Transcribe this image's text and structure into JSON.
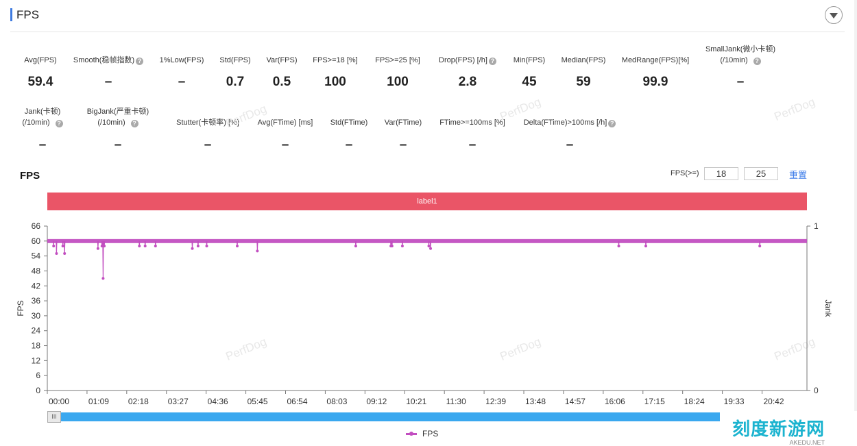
{
  "section": {
    "title": "FPS"
  },
  "stats_row1": [
    {
      "label": "Avg(FPS)",
      "value": "59.4",
      "help": false
    },
    {
      "label": "Smooth(稳帧指数)",
      "value": "–",
      "help": true
    },
    {
      "label": "1%Low(FPS)",
      "value": "–",
      "help": false
    },
    {
      "label": "Std(FPS)",
      "value": "0.7",
      "help": false
    },
    {
      "label": "Var(FPS)",
      "value": "0.5",
      "help": false
    },
    {
      "label": "FPS>=18 [%]",
      "value": "100",
      "help": false
    },
    {
      "label": "FPS>=25 [%]",
      "value": "100",
      "help": false
    },
    {
      "label": "Drop(FPS) [/h]",
      "value": "2.8",
      "help": true
    },
    {
      "label": "Min(FPS)",
      "value": "45",
      "help": false
    },
    {
      "label": "Median(FPS)",
      "value": "59",
      "help": false
    },
    {
      "label": "MedRange(FPS)[%]",
      "value": "99.9",
      "help": false
    },
    {
      "label": "SmallJank(微小卡顿)",
      "label2": "(/10min)",
      "value": "–",
      "help": true
    }
  ],
  "stats_row2": [
    {
      "label": "Jank(卡顿)",
      "label2": "(/10min)",
      "value": "–",
      "help": true
    },
    {
      "label": "BigJank(严重卡顿)",
      "label2": "(/10min)",
      "value": "–",
      "help": true
    },
    {
      "label": "Stutter(卡顿率) [%]",
      "value": "–",
      "help": false
    },
    {
      "label": "Avg(FTime) [ms]",
      "value": "–",
      "help": false
    },
    {
      "label": "Std(FTime)",
      "value": "–",
      "help": false
    },
    {
      "label": "Var(FTime)",
      "value": "–",
      "help": false
    },
    {
      "label": "FTime>=100ms [%]",
      "value": "–",
      "help": false
    },
    {
      "label": "Delta(FTime)>100ms [/h]",
      "value": "–",
      "help": true
    }
  ],
  "help_glyph": "?",
  "controls": {
    "fps_label": "FPS(>=)",
    "threshold_1": "18",
    "threshold_2": "25",
    "reset": "重置"
  },
  "watermark": "PerfDog",
  "scroll_handle_glyph": "III",
  "logo": {
    "cn": "刻度新游网",
    "en": "AKEDU.NET"
  },
  "chart_data": {
    "type": "line",
    "title": "FPS",
    "label_band": "label1",
    "ylabel": "FPS",
    "y2label": "Jank",
    "ylim": [
      0,
      66
    ],
    "yticks": [
      0,
      6,
      12,
      18,
      24,
      30,
      36,
      42,
      48,
      54,
      60,
      66
    ],
    "y2lim": [
      0,
      1
    ],
    "y2ticks": [
      0,
      1
    ],
    "xlim": [
      0,
      1320
    ],
    "xtick_labels": [
      "00:00",
      "01:09",
      "02:18",
      "03:27",
      "04:36",
      "05:45",
      "06:54",
      "08:03",
      "09:12",
      "10:21",
      "11:30",
      "12:39",
      "13:48",
      "14:57",
      "16:06",
      "17:15",
      "18:24",
      "19:33",
      "20:42"
    ],
    "xtick_seconds": [
      0,
      69,
      138,
      207,
      276,
      345,
      414,
      483,
      552,
      621,
      690,
      759,
      828,
      897,
      966,
      1035,
      1104,
      1173,
      1242
    ],
    "baseline_fps": 60,
    "dips": [
      {
        "t": 11,
        "fps": 58
      },
      {
        "t": 16,
        "fps": 55
      },
      {
        "t": 27,
        "fps": 58
      },
      {
        "t": 30,
        "fps": 55
      },
      {
        "t": 88,
        "fps": 57
      },
      {
        "t": 95,
        "fps": 58
      },
      {
        "t": 97,
        "fps": 45
      },
      {
        "t": 99,
        "fps": 58
      },
      {
        "t": 160,
        "fps": 58
      },
      {
        "t": 170,
        "fps": 58
      },
      {
        "t": 188,
        "fps": 58
      },
      {
        "t": 252,
        "fps": 57
      },
      {
        "t": 262,
        "fps": 58
      },
      {
        "t": 277,
        "fps": 58
      },
      {
        "t": 330,
        "fps": 58
      },
      {
        "t": 365,
        "fps": 56
      },
      {
        "t": 536,
        "fps": 58
      },
      {
        "t": 597,
        "fps": 58
      },
      {
        "t": 599,
        "fps": 58
      },
      {
        "t": 617,
        "fps": 58
      },
      {
        "t": 663,
        "fps": 58
      },
      {
        "t": 666,
        "fps": 57
      },
      {
        "t": 993,
        "fps": 58
      },
      {
        "t": 1040,
        "fps": 58
      },
      {
        "t": 1238,
        "fps": 58
      }
    ],
    "series": [
      {
        "name": "FPS",
        "color": "#c24ec0"
      }
    ]
  }
}
